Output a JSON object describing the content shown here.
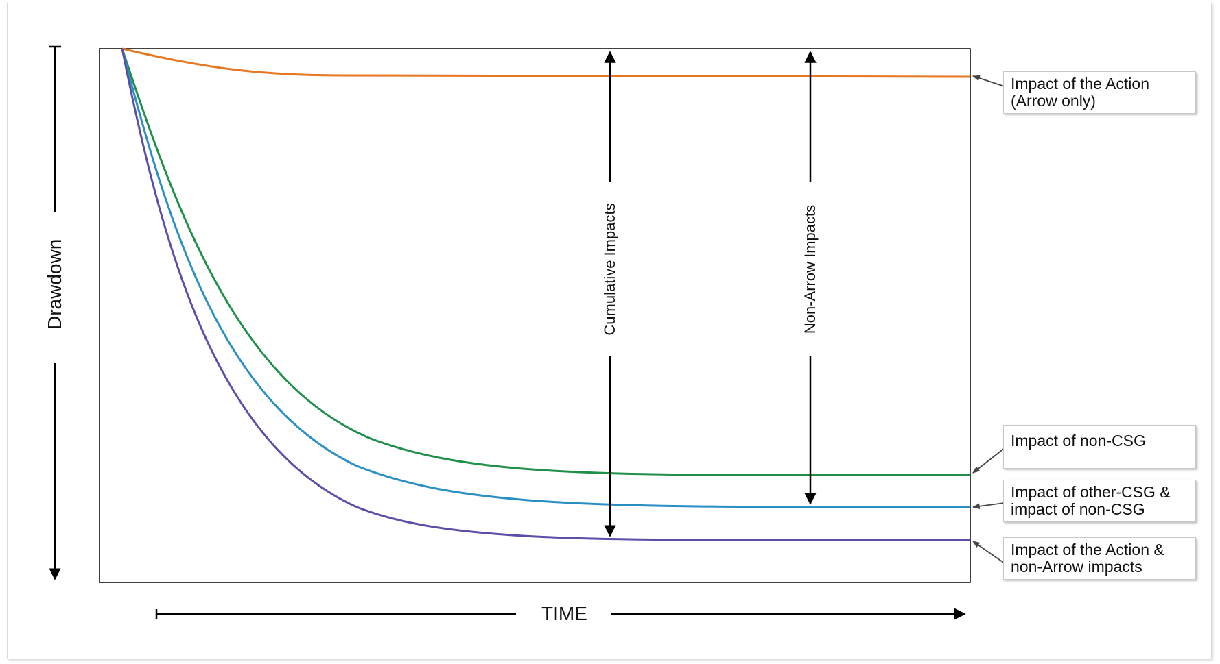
{
  "diagram": {
    "y_axis_label": "Drawdown",
    "x_axis_label": "TIME",
    "span_labels": {
      "cumulative": "Cumulative Impacts",
      "non_arrow": "Non-Arrow Impacts"
    },
    "curves": [
      {
        "id": "action",
        "color": "#e87722",
        "callout": "Impact of the Action\n(Arrow only)"
      },
      {
        "id": "non_csg",
        "color": "#1f8f4a",
        "callout": "Impact of non-CSG"
      },
      {
        "id": "other_csg",
        "color": "#2a8fc4",
        "callout": "Impact of other-CSG &\nimpact of non-CSG"
      },
      {
        "id": "action_non_arrow",
        "color": "#5b4ea8",
        "callout": "Impact of the Action &\nnon-Arrow impacts"
      }
    ]
  }
}
